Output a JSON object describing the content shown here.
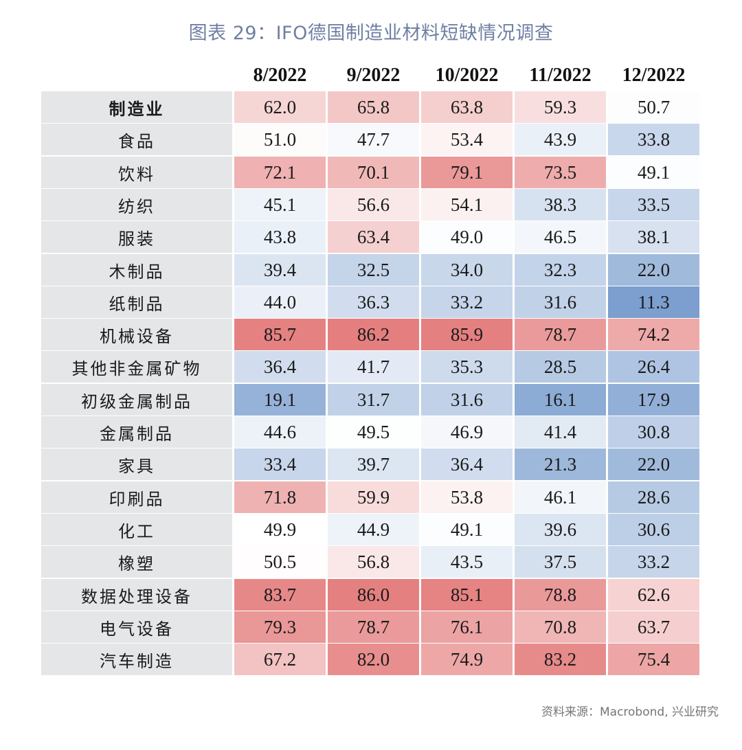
{
  "title": "图表 29：IFO德国制造业材料短缺情况调查",
  "source": "资料来源：Macrobond, 兴业研究",
  "chart_data": {
    "type": "heatmap",
    "title": "图表 29：IFO德国制造业材料短缺情况调查",
    "columns": [
      "8/2022",
      "9/2022",
      "10/2022",
      "11/2022",
      "12/2022"
    ],
    "rows": [
      {
        "label": "制造业",
        "values": [
          62.0,
          65.8,
          63.8,
          59.3,
          50.7
        ],
        "display": [
          "62.0",
          "65.8",
          "63.8",
          "59.3",
          "50.7"
        ]
      },
      {
        "label": "食品",
        "values": [
          51.0,
          47.7,
          53.4,
          43.9,
          33.8
        ],
        "display": [
          "51.0",
          "47.7",
          "53.4",
          "43.9",
          "33.8"
        ]
      },
      {
        "label": "饮料",
        "values": [
          72.1,
          70.1,
          79.1,
          73.5,
          49.1
        ],
        "display": [
          "72.1",
          "70.1",
          "79.1",
          "73.5",
          "49.1"
        ]
      },
      {
        "label": "纺织",
        "values": [
          45.1,
          56.6,
          54.1,
          38.3,
          33.5
        ],
        "display": [
          "45.1",
          "56.6",
          "54.1",
          "38.3",
          "33.5"
        ]
      },
      {
        "label": "服装",
        "values": [
          43.8,
          63.4,
          49.0,
          46.5,
          38.1
        ],
        "display": [
          "43.8",
          "63.4",
          "49.0",
          "46.5",
          "38.1"
        ]
      },
      {
        "label": "木制品",
        "values": [
          39.4,
          32.5,
          34.0,
          32.3,
          22.0
        ],
        "display": [
          "39.4",
          "32.5",
          "34.0",
          "32.3",
          "22.0"
        ]
      },
      {
        "label": "纸制品",
        "values": [
          44.0,
          36.3,
          33.2,
          31.6,
          11.3
        ],
        "display": [
          "44.0",
          "36.3",
          "33.2",
          "31.6",
          "11.3"
        ]
      },
      {
        "label": "机械设备",
        "values": [
          85.7,
          86.2,
          85.9,
          78.7,
          74.2
        ],
        "display": [
          "85.7",
          "86.2",
          "85.9",
          "78.7",
          "74.2"
        ]
      },
      {
        "label": "其他非金属矿物",
        "values": [
          36.4,
          41.7,
          35.3,
          28.5,
          26.4
        ],
        "display": [
          "36.4",
          "41.7",
          "35.3",
          "28.5",
          "26.4"
        ]
      },
      {
        "label": "初级金属制品",
        "values": [
          19.1,
          31.7,
          31.6,
          16.1,
          17.9
        ],
        "display": [
          "19.1",
          "31.7",
          "31.6",
          "16.1",
          "17.9"
        ]
      },
      {
        "label": "金属制品",
        "values": [
          44.6,
          49.5,
          46.9,
          41.4,
          30.8
        ],
        "display": [
          "44.6",
          "49.5",
          "46.9",
          "41.4",
          "30.8"
        ]
      },
      {
        "label": "家具",
        "values": [
          33.4,
          39.7,
          36.4,
          21.3,
          22.0
        ],
        "display": [
          "33.4",
          "39.7",
          "36.4",
          "21.3",
          "22.0"
        ]
      },
      {
        "label": "印刷品",
        "values": [
          71.8,
          59.9,
          53.8,
          46.1,
          28.6
        ],
        "display": [
          "71.8",
          "59.9",
          "53.8",
          "46.1",
          "28.6"
        ]
      },
      {
        "label": "化工",
        "values": [
          49.9,
          44.9,
          49.1,
          39.6,
          30.6
        ],
        "display": [
          "49.9",
          "44.9",
          "49.1",
          "39.6",
          "30.6"
        ]
      },
      {
        "label": "橡塑",
        "values": [
          50.5,
          56.8,
          43.5,
          37.5,
          33.2
        ],
        "display": [
          "50.5",
          "56.8",
          "43.5",
          "37.5",
          "33.2"
        ]
      },
      {
        "label": "数据处理设备",
        "values": [
          83.7,
          86.0,
          85.1,
          78.8,
          62.6
        ],
        "display": [
          "83.7",
          "86.0",
          "85.1",
          "78.8",
          "62.6"
        ]
      },
      {
        "label": "电气设备",
        "values": [
          79.3,
          78.7,
          76.1,
          70.8,
          63.7
        ],
        "display": [
          "79.3",
          "78.7",
          "76.1",
          "70.8",
          "63.7"
        ]
      },
      {
        "label": "汽车制造",
        "values": [
          67.2,
          82.0,
          74.9,
          83.2,
          75.4
        ],
        "display": [
          "67.2",
          "82.0",
          "74.9",
          "83.2",
          "75.4"
        ]
      }
    ],
    "bold_rows": [
      "制造业"
    ],
    "colors": {
      "low": "#7c9fcf",
      "mid": "#ffffff",
      "high": "#e57f7f",
      "row_label_bg": "#e5e6e8",
      "title": "#6f7fa3"
    }
  }
}
